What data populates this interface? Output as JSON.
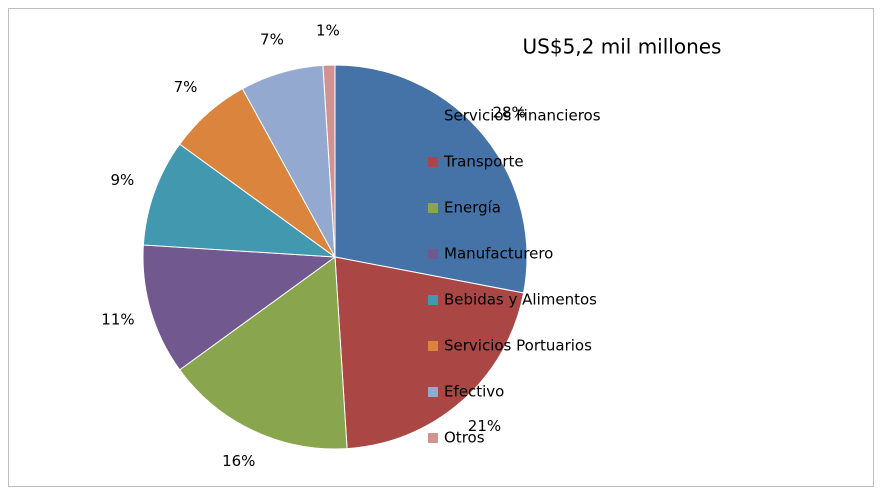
{
  "chart_data": {
    "type": "pie",
    "title": "US$5,2 mil millones",
    "categories": [
      "Servicios Financieros",
      "Transporte",
      "Energía",
      "Manufacturero",
      "Bebidas y Alimentos",
      "Servicios Portuarios",
      "Efectivo",
      "Otros"
    ],
    "values": [
      28,
      21,
      16,
      11,
      9,
      7,
      7,
      1
    ],
    "value_labels": [
      "28%",
      "21%",
      "16%",
      "11%",
      "9%",
      "7%",
      "7%",
      "1%"
    ],
    "colors": [
      "#4572a7",
      "#aa4643",
      "#89a54e",
      "#71588f",
      "#4198af",
      "#db843d",
      "#93a9cf",
      "#d19392"
    ],
    "legend": "right"
  }
}
